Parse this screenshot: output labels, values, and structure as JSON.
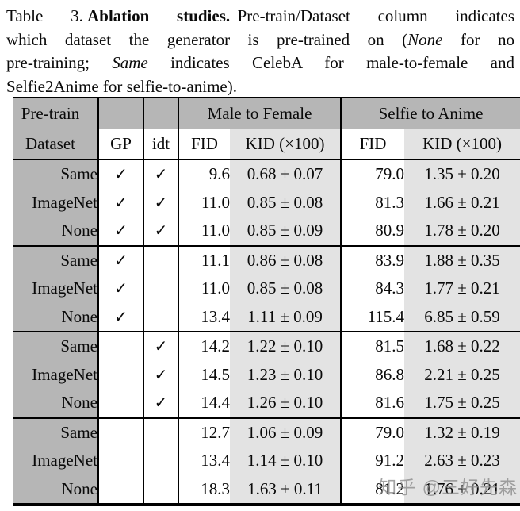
{
  "caption": {
    "line1_prefix": "Table 3.",
    "line1_bold": "Ablation studies.",
    "line1_rest": "Pre-train/Dataset column indicates",
    "line2_a": "which dataset the generator is pre-trained on (",
    "line2_italic": "None",
    "line2_b": " for no",
    "line3_a": "pre-training; ",
    "line3_italic": "Same",
    "line3_b": " indicates CelebA for male-to-female and",
    "line4": "Selfie2Anime for selfie-to-anime)."
  },
  "table": {
    "header": {
      "pretrain_line1": "Pre-train",
      "pretrain_line2": "Dataset",
      "gp": "GP",
      "idt": "idt",
      "group1": "Male to Female",
      "group2": "Selfie to Anime",
      "fid1": "FID",
      "kid1": "KID (×100)",
      "fid2": "FID",
      "kid2": "KID (×100)"
    },
    "check_glyph": "✓",
    "groups": [
      {
        "rows": [
          {
            "dataset": "Same",
            "gp": true,
            "idt": true,
            "m2f_fid": "9.6",
            "m2f_kid": "0.68 ± 0.07",
            "s2a_fid": "79.0",
            "s2a_kid": "1.35 ± 0.20"
          },
          {
            "dataset": "ImageNet",
            "gp": true,
            "idt": true,
            "m2f_fid": "11.0",
            "m2f_kid": "0.85 ± 0.08",
            "s2a_fid": "81.3",
            "s2a_kid": "1.66 ± 0.21"
          },
          {
            "dataset": "None",
            "gp": true,
            "idt": true,
            "m2f_fid": "11.0",
            "m2f_kid": "0.85 ± 0.09",
            "s2a_fid": "80.9",
            "s2a_kid": "1.78 ± 0.20"
          }
        ]
      },
      {
        "rows": [
          {
            "dataset": "Same",
            "gp": true,
            "idt": false,
            "m2f_fid": "11.1",
            "m2f_kid": "0.86 ± 0.08",
            "s2a_fid": "83.9",
            "s2a_kid": "1.88 ± 0.35"
          },
          {
            "dataset": "ImageNet",
            "gp": true,
            "idt": false,
            "m2f_fid": "11.0",
            "m2f_kid": "0.85 ± 0.08",
            "s2a_fid": "84.3",
            "s2a_kid": "1.77 ± 0.21"
          },
          {
            "dataset": "None",
            "gp": true,
            "idt": false,
            "m2f_fid": "13.4",
            "m2f_kid": "1.11 ± 0.09",
            "s2a_fid": "115.4",
            "s2a_kid": "6.85 ± 0.59"
          }
        ]
      },
      {
        "rows": [
          {
            "dataset": "Same",
            "gp": false,
            "idt": true,
            "m2f_fid": "14.2",
            "m2f_kid": "1.22 ± 0.10",
            "s2a_fid": "81.5",
            "s2a_kid": "1.68 ± 0.22"
          },
          {
            "dataset": "ImageNet",
            "gp": false,
            "idt": true,
            "m2f_fid": "14.5",
            "m2f_kid": "1.23 ± 0.10",
            "s2a_fid": "86.8",
            "s2a_kid": "2.21 ± 0.25"
          },
          {
            "dataset": "None",
            "gp": false,
            "idt": true,
            "m2f_fid": "14.4",
            "m2f_kid": "1.26 ± 0.10",
            "s2a_fid": "81.6",
            "s2a_kid": "1.75 ± 0.25"
          }
        ]
      },
      {
        "rows": [
          {
            "dataset": "Same",
            "gp": false,
            "idt": false,
            "m2f_fid": "12.7",
            "m2f_kid": "1.06 ± 0.09",
            "s2a_fid": "79.0",
            "s2a_kid": "1.32 ± 0.19"
          },
          {
            "dataset": "ImageNet",
            "gp": false,
            "idt": false,
            "m2f_fid": "13.4",
            "m2f_kid": "1.14 ± 0.10",
            "s2a_fid": "91.2",
            "s2a_kid": "2.63 ± 0.23"
          },
          {
            "dataset": "None",
            "gp": false,
            "idt": false,
            "m2f_fid": "18.3",
            "m2f_kid": "1.63 ± 0.11",
            "s2a_fid": "81.2",
            "s2a_kid": "1.76 ± 0.21"
          }
        ]
      }
    ]
  },
  "watermark": "知乎 @三好先森",
  "colors": {
    "band_gray": "#b6b6b6",
    "kid_gray": "#e3e3e3",
    "rule_black": "#000000"
  }
}
